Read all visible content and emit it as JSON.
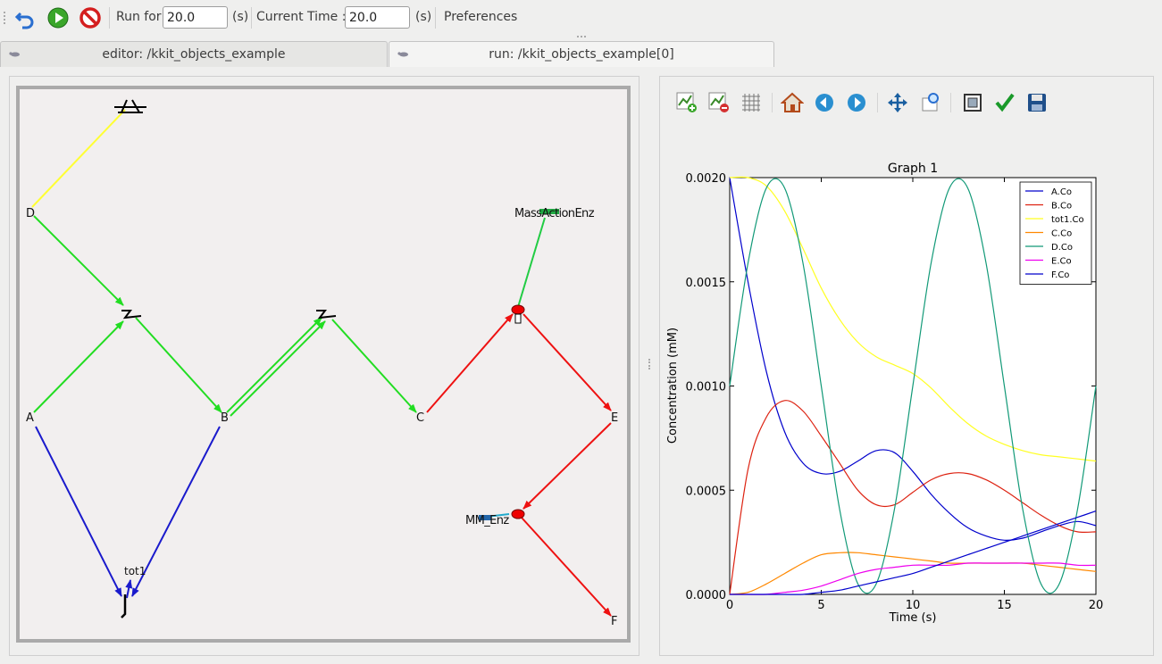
{
  "toolbar": {
    "undo_icon": "undo-icon",
    "run_icon": "play-icon",
    "stop_icon": "stop-icon",
    "run_for_label": "Run for",
    "run_for_value": "20.0",
    "run_for_unit": "(s)",
    "current_time_label": "Current Time :",
    "current_time_value": "20.0",
    "current_time_unit": "(s)",
    "preferences_label": "Preferences"
  },
  "tabs": [
    {
      "label": "editor: /kkit_objects_example",
      "active": false
    },
    {
      "label": "run: /kkit_objects_example[0]",
      "active": true
    }
  ],
  "network": {
    "nodes": {
      "D": "D",
      "A": "A",
      "B": "B",
      "C": "C",
      "E": "E",
      "F": "F",
      "tot1": "tot1",
      "mass_action_enz": "MassActionEnz",
      "mm_enz": "MM_Enz"
    },
    "colors": {
      "yellow_edge": "#ffff33",
      "green_edge": "#22dd22",
      "blue_edge": "#1a1acc",
      "red_edge": "#ee1111",
      "enzyme_node": "#ee0000"
    }
  },
  "plot_toolbar": {
    "icons": [
      "add-plot-icon",
      "remove-plot-icon",
      "grid-icon",
      "home-icon",
      "back-icon",
      "forward-icon",
      "pan-icon",
      "zoom-icon",
      "subplot-config-icon",
      "edit-check-icon",
      "save-icon"
    ]
  },
  "chart_data": {
    "type": "line",
    "title": "Graph 1",
    "xlabel": "Time (s)",
    "ylabel": "Concentration (mM)",
    "xlim": [
      0,
      20
    ],
    "ylim": [
      0,
      0.002
    ],
    "xticks": [
      "0",
      "5",
      "10",
      "15",
      "20"
    ],
    "yticks": [
      "0.0000",
      "0.0005",
      "0.0010",
      "0.0015",
      "0.0020"
    ],
    "legend_position": "top-right",
    "x": [
      0,
      1,
      2,
      3,
      4,
      5,
      6,
      7,
      8,
      9,
      10,
      11,
      12,
      13,
      14,
      15,
      16,
      17,
      18,
      19,
      20
    ],
    "series": [
      {
        "name": "A.Co",
        "color": "#0000cc",
        "values": [
          0.002,
          0.0015,
          0.00107,
          0.00078,
          0.00063,
          0.00058,
          0.00059,
          0.00064,
          0.00069,
          0.00068,
          0.00059,
          0.00048,
          0.00039,
          0.00032,
          0.00028,
          0.00026,
          0.00027,
          0.0003,
          0.00033,
          0.00035,
          0.00033
        ]
      },
      {
        "name": "B.Co",
        "color": "#dd2211",
        "values": [
          0.0,
          0.0006,
          0.00085,
          0.00093,
          0.00088,
          0.00076,
          0.00063,
          0.0005,
          0.00043,
          0.00043,
          0.00049,
          0.00055,
          0.00058,
          0.00058,
          0.00055,
          0.0005,
          0.00044,
          0.00038,
          0.00033,
          0.0003,
          0.0003
        ]
      },
      {
        "name": "tot1.Co",
        "color": "#ffff22",
        "values": [
          0.002,
          0.002,
          0.00196,
          0.00184,
          0.00166,
          0.00147,
          0.00132,
          0.00121,
          0.00114,
          0.0011,
          0.00106,
          0.00099,
          0.0009,
          0.00082,
          0.00076,
          0.00072,
          0.00069,
          0.00067,
          0.00066,
          0.00065,
          0.00064
        ]
      },
      {
        "name": "C.Co",
        "color": "#ff8800",
        "values": [
          0.0,
          1e-05,
          5e-05,
          0.0001,
          0.00015,
          0.00019,
          0.0002,
          0.0002,
          0.00019,
          0.00018,
          0.00017,
          0.00016,
          0.00015,
          0.00015,
          0.00015,
          0.00015,
          0.00015,
          0.00014,
          0.00013,
          0.00012,
          0.00011
        ]
      },
      {
        "name": "D.Co",
        "color": "#119977",
        "values": [
          0.001,
          0.00159,
          0.00195,
          0.00195,
          0.00159,
          0.001,
          0.00041,
          5e-05,
          5e-05,
          0.00041,
          0.001,
          0.00159,
          0.00195,
          0.00195,
          0.00159,
          0.001,
          0.00041,
          5e-05,
          5e-05,
          0.00041,
          0.001
        ]
      },
      {
        "name": "E.Co",
        "color": "#ee00ee",
        "values": [
          0.0,
          0.0,
          0.0,
          1e-05,
          2e-05,
          4e-05,
          7e-05,
          0.0001,
          0.00012,
          0.00013,
          0.00014,
          0.00014,
          0.00014,
          0.00015,
          0.00015,
          0.00015,
          0.00015,
          0.00015,
          0.00015,
          0.00014,
          0.00014
        ]
      },
      {
        "name": "F.Co",
        "color": "#0000cc",
        "values": [
          0.0,
          0.0,
          0.0,
          0.0,
          0.0,
          1e-05,
          2e-05,
          4e-05,
          6e-05,
          8e-05,
          0.0001,
          0.00013,
          0.00016,
          0.00019,
          0.00022,
          0.00025,
          0.00028,
          0.00031,
          0.00034,
          0.00037,
          0.0004
        ]
      }
    ]
  }
}
